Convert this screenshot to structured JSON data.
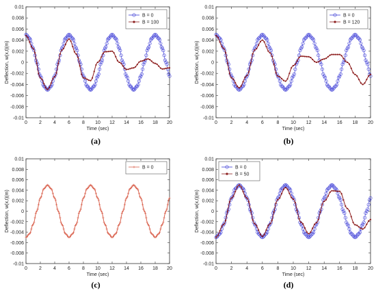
{
  "chart_data": [
    {
      "panel_label": "(a)",
      "type": "line",
      "xlabel": "Time (sec)",
      "ylabel": "Deflection, w(x,t)(m)",
      "xlim": [
        0,
        20
      ],
      "ylim": [
        -0.01,
        0.01
      ],
      "x_ticks": [
        "0",
        "2",
        "4",
        "6",
        "8",
        "10",
        "12",
        "14",
        "16",
        "18",
        "20"
      ],
      "y_ticks": [
        "0.01",
        "0.008",
        "0.006",
        "0.004",
        "0.002",
        "0",
        "-0.002",
        "-0.004",
        "-0.006",
        "-0.008",
        "-0.01"
      ],
      "legend_position": "top-right",
      "series": [
        {
          "name": "B = 0",
          "color": "#3b3bd6",
          "marker": "circle",
          "x": [
            0,
            0.5,
            1,
            1.5,
            2,
            2.5,
            3,
            3.5,
            4,
            4.5,
            5,
            5.5,
            6,
            6.5,
            7,
            7.5,
            8,
            8.5,
            9,
            9.5,
            10,
            10.5,
            11,
            11.5,
            12,
            12.5,
            13,
            13.5,
            14,
            14.5,
            15,
            15.5,
            16,
            16.5,
            17,
            17.5,
            18,
            18.5,
            19,
            19.5,
            20
          ],
          "values": [
            0.005,
            0.0043,
            0.0025,
            0,
            -0.0025,
            -0.0043,
            -0.005,
            -0.0043,
            -0.0025,
            0,
            0.0025,
            0.0043,
            0.005,
            0.0043,
            0.0025,
            0,
            -0.0025,
            -0.0043,
            -0.005,
            -0.0043,
            -0.0025,
            0,
            0.0025,
            0.0043,
            0.005,
            0.0043,
            0.0025,
            0,
            -0.0025,
            -0.0043,
            -0.005,
            -0.0043,
            -0.0025,
            0,
            0.0025,
            0.0043,
            0.005,
            0.0043,
            0.0025,
            0,
            -0.0025
          ]
        },
        {
          "name": "B = 100",
          "color": "#8b1a1a",
          "marker": "point",
          "x": [
            0,
            1,
            2,
            3,
            4,
            5,
            6,
            7,
            8,
            9,
            10,
            11,
            12,
            13,
            14,
            15,
            16,
            17,
            18,
            19,
            20
          ],
          "values": [
            0.0048,
            0.0025,
            -0.0028,
            -0.0049,
            -0.0026,
            0.0022,
            0.0042,
            0.0015,
            -0.0028,
            -0.0033,
            0,
            0.0019,
            0.002,
            0,
            -0.0013,
            -0.001,
            0.0002,
            0.0006,
            -0.0002,
            -0.0012,
            -0.001
          ]
        }
      ]
    },
    {
      "panel_label": "(b)",
      "type": "line",
      "xlabel": "Time (sec)",
      "ylabel": "Deflection, w(x,t)(m)",
      "xlim": [
        0,
        20
      ],
      "ylim": [
        -0.01,
        0.01
      ],
      "x_ticks": [
        "0",
        "2",
        "4",
        "6",
        "8",
        "10",
        "12",
        "14",
        "16",
        "18",
        "20"
      ],
      "y_ticks": [
        "0.01",
        "0.008",
        "0.006",
        "0.004",
        "0.002",
        "0",
        "-0.002",
        "-0.004",
        "-0.006",
        "-0.008",
        "-0.01"
      ],
      "legend_position": "top-right",
      "series": [
        {
          "name": "B = 0",
          "color": "#3b3bd6",
          "marker": "circle",
          "x": [
            0,
            0.5,
            1,
            1.5,
            2,
            2.5,
            3,
            3.5,
            4,
            4.5,
            5,
            5.5,
            6,
            6.5,
            7,
            7.5,
            8,
            8.5,
            9,
            9.5,
            10,
            10.5,
            11,
            11.5,
            12,
            12.5,
            13,
            13.5,
            14,
            14.5,
            15,
            15.5,
            16,
            16.5,
            17,
            17.5,
            18,
            18.5,
            19,
            19.5,
            20
          ],
          "values": [
            0.005,
            0.0043,
            0.0025,
            0,
            -0.0025,
            -0.0043,
            -0.005,
            -0.0043,
            -0.0025,
            0,
            0.0025,
            0.0043,
            0.005,
            0.0043,
            0.0025,
            0,
            -0.0025,
            -0.0043,
            -0.005,
            -0.0043,
            -0.0025,
            0,
            0.0025,
            0.0043,
            0.005,
            0.0043,
            0.0025,
            0,
            -0.0025,
            -0.0043,
            -0.005,
            -0.0043,
            -0.0025,
            0,
            0.0025,
            0.0043,
            0.005,
            0.0043,
            0.0025,
            0,
            -0.0025
          ]
        },
        {
          "name": "B = 120",
          "color": "#8b1a1a",
          "marker": "point",
          "x": [
            0,
            1,
            2,
            3,
            4,
            5,
            6,
            7,
            8,
            9,
            10,
            11,
            12,
            13,
            14,
            15,
            16,
            17,
            18,
            19,
            20
          ],
          "values": [
            0.0048,
            0.0025,
            -0.0028,
            -0.0046,
            -0.0024,
            0.0022,
            0.004,
            0.0017,
            -0.0025,
            -0.0034,
            -0.0006,
            0.0011,
            0.001,
            0,
            0.0006,
            0.0014,
            0.0014,
            0,
            -0.0022,
            -0.004,
            -0.0022
          ]
        }
      ]
    },
    {
      "panel_label": "(c)",
      "type": "line",
      "xlabel": "Time (sec)",
      "ylabel": "Deflection, w(x,t)(m)",
      "xlim": [
        0,
        20
      ],
      "ylim": [
        -0.01,
        0.01
      ],
      "x_ticks": [
        "0",
        "2",
        "4",
        "6",
        "8",
        "10",
        "12",
        "14",
        "16",
        "18",
        "20"
      ],
      "y_ticks": [
        "0.01",
        "0.008",
        "0.006",
        "0.004",
        "0.002",
        "0",
        "-0.002",
        "-0.004",
        "-0.006",
        "-0.008",
        "-0.01"
      ],
      "legend_position": "top-right",
      "series": [
        {
          "name": "B = 0",
          "color": "#d9604c",
          "marker": "plus",
          "x": [
            0,
            0.5,
            1,
            1.5,
            2,
            2.5,
            3,
            3.5,
            4,
            4.5,
            5,
            5.5,
            6,
            6.5,
            7,
            7.5,
            8,
            8.5,
            9,
            9.5,
            10,
            10.5,
            11,
            11.5,
            12,
            12.5,
            13,
            13.5,
            14,
            14.5,
            15,
            15.5,
            16,
            16.5,
            17,
            17.5,
            18,
            18.5,
            19,
            19.5,
            20
          ],
          "values": [
            -0.005,
            -0.0043,
            -0.0025,
            0,
            0.0025,
            0.0043,
            0.005,
            0.0043,
            0.0025,
            0,
            -0.0025,
            -0.0043,
            -0.005,
            -0.0043,
            -0.0025,
            0,
            0.0025,
            0.0043,
            0.005,
            0.0043,
            0.0025,
            0,
            -0.0025,
            -0.0043,
            -0.005,
            -0.0043,
            -0.0025,
            0,
            0.0025,
            0.0043,
            0.005,
            0.0043,
            0.0025,
            0,
            -0.0025,
            -0.0043,
            -0.005,
            -0.0043,
            -0.0025,
            0,
            0.0025
          ]
        }
      ]
    },
    {
      "panel_label": "(d)",
      "type": "line",
      "xlabel": "Time (sec)",
      "ylabel": "Deflection, w(x,t)(m)",
      "xlim": [
        0,
        20
      ],
      "ylim": [
        -0.01,
        0.01
      ],
      "x_ticks": [
        "0",
        "2",
        "4",
        "6",
        "8",
        "10",
        "12",
        "14",
        "16",
        "18",
        "20"
      ],
      "y_ticks": [
        "0.01",
        "0.008",
        "0.006",
        "0.004",
        "0.002",
        "0",
        "-0.002",
        "-0.004",
        "-0.006",
        "-0.008",
        "-0.01"
      ],
      "legend_position": "top-left",
      "series": [
        {
          "name": "B = 0",
          "color": "#3b3bd6",
          "marker": "circle",
          "x": [
            0,
            0.5,
            1,
            1.5,
            2,
            2.5,
            3,
            3.5,
            4,
            4.5,
            5,
            5.5,
            6,
            6.5,
            7,
            7.5,
            8,
            8.5,
            9,
            9.5,
            10,
            10.5,
            11,
            11.5,
            12,
            12.5,
            13,
            13.5,
            14,
            14.5,
            15,
            15.5,
            16,
            16.5,
            17,
            17.5,
            18,
            18.5,
            19,
            19.5,
            20
          ],
          "values": [
            -0.005,
            -0.0043,
            -0.0025,
            0,
            0.0025,
            0.0043,
            0.005,
            0.0043,
            0.0025,
            0,
            -0.0025,
            -0.0043,
            -0.005,
            -0.0043,
            -0.0025,
            0,
            0.0025,
            0.0043,
            0.005,
            0.0043,
            0.0025,
            0,
            -0.0025,
            -0.0043,
            -0.005,
            -0.0043,
            -0.0025,
            0,
            0.0025,
            0.0043,
            0.005,
            0.0043,
            0.0025,
            0,
            -0.0025,
            -0.0043,
            -0.005,
            -0.0043,
            -0.0025,
            0,
            0.0025
          ]
        },
        {
          "name": "B = 50",
          "color": "#8b1a1a",
          "marker": "point",
          "x": [
            0,
            1,
            2,
            3,
            4,
            5,
            6,
            7,
            8,
            9,
            10,
            11,
            12,
            13,
            14,
            15,
            16,
            17,
            18,
            19,
            20
          ],
          "values": [
            -0.005,
            -0.0025,
            0.0025,
            0.005,
            0.0025,
            -0.0024,
            -0.0048,
            -0.0024,
            0.0022,
            0.0045,
            0.0023,
            -0.0021,
            -0.0043,
            -0.0022,
            0.0019,
            0.0039,
            0.0038,
            0.0005,
            -0.0026,
            -0.0034,
            -0.0016
          ]
        }
      ]
    }
  ]
}
